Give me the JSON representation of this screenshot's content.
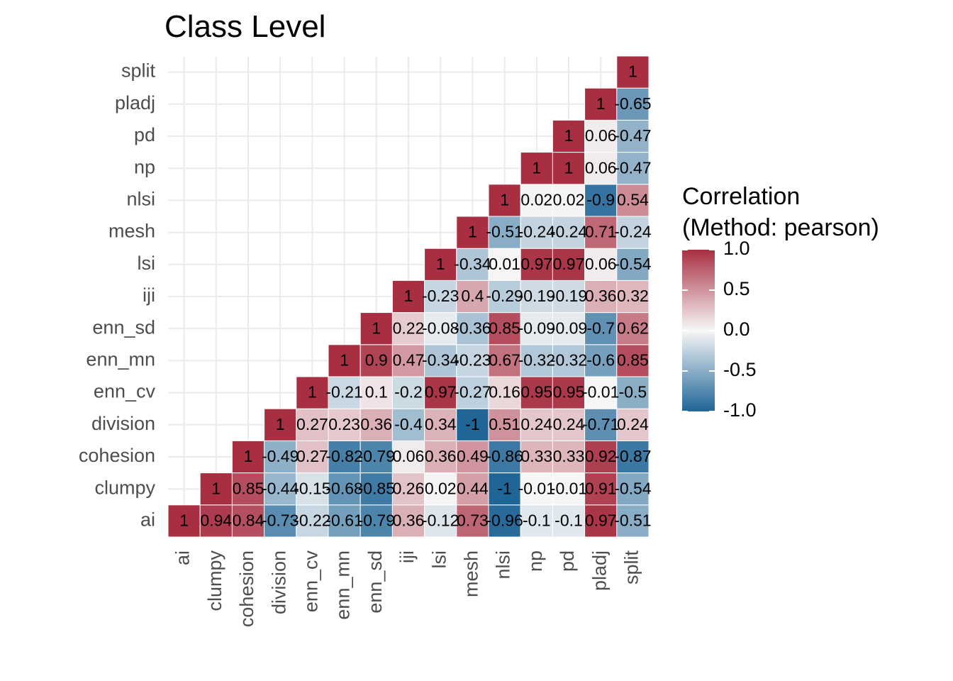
{
  "chart_data": {
    "type": "heatmap",
    "title": "Class Level",
    "variables": [
      "ai",
      "clumpy",
      "cohesion",
      "division",
      "enn_cv",
      "enn_mn",
      "enn_sd",
      "iji",
      "lsi",
      "mesh",
      "nlsi",
      "np",
      "pd",
      "pladj",
      "split"
    ],
    "cells": [
      {
        "x": "ai",
        "y": "ai",
        "value": 1,
        "label": "1"
      },
      {
        "x": "clumpy",
        "y": "ai",
        "value": 0.94,
        "label": "0.94"
      },
      {
        "x": "clumpy",
        "y": "clumpy",
        "value": 1,
        "label": "1"
      },
      {
        "x": "cohesion",
        "y": "ai",
        "value": 0.84,
        "label": "0.84"
      },
      {
        "x": "cohesion",
        "y": "clumpy",
        "value": 0.85,
        "label": "0.85"
      },
      {
        "x": "cohesion",
        "y": "cohesion",
        "value": 1,
        "label": "1"
      },
      {
        "x": "division",
        "y": "ai",
        "value": -0.73,
        "label": "-0.73"
      },
      {
        "x": "division",
        "y": "clumpy",
        "value": -0.44,
        "label": "-0.44"
      },
      {
        "x": "division",
        "y": "cohesion",
        "value": -0.49,
        "label": "-0.49"
      },
      {
        "x": "division",
        "y": "division",
        "value": 1,
        "label": "1"
      },
      {
        "x": "enn_cv",
        "y": "ai",
        "value": -0.22,
        "label": "-0.22"
      },
      {
        "x": "enn_cv",
        "y": "clumpy",
        "value": -0.15,
        "label": "-0.15"
      },
      {
        "x": "enn_cv",
        "y": "cohesion",
        "value": 0.27,
        "label": "0.27"
      },
      {
        "x": "enn_cv",
        "y": "division",
        "value": 0.27,
        "label": "0.27"
      },
      {
        "x": "enn_cv",
        "y": "enn_cv",
        "value": 1,
        "label": "1"
      },
      {
        "x": "enn_mn",
        "y": "ai",
        "value": -0.61,
        "label": "-0.61"
      },
      {
        "x": "enn_mn",
        "y": "clumpy",
        "value": -0.68,
        "label": "-0.68"
      },
      {
        "x": "enn_mn",
        "y": "cohesion",
        "value": -0.82,
        "label": "-0.82"
      },
      {
        "x": "enn_mn",
        "y": "division",
        "value": 0.23,
        "label": "0.23"
      },
      {
        "x": "enn_mn",
        "y": "enn_cv",
        "value": -0.21,
        "label": "-0.21"
      },
      {
        "x": "enn_mn",
        "y": "enn_mn",
        "value": 1,
        "label": "1"
      },
      {
        "x": "enn_sd",
        "y": "ai",
        "value": -0.79,
        "label": "-0.79"
      },
      {
        "x": "enn_sd",
        "y": "clumpy",
        "value": -0.85,
        "label": "-0.85"
      },
      {
        "x": "enn_sd",
        "y": "cohesion",
        "value": -0.79,
        "label": "-0.79"
      },
      {
        "x": "enn_sd",
        "y": "division",
        "value": 0.36,
        "label": "0.36"
      },
      {
        "x": "enn_sd",
        "y": "enn_cv",
        "value": 0.1,
        "label": "0.1"
      },
      {
        "x": "enn_sd",
        "y": "enn_mn",
        "value": 0.9,
        "label": "0.9"
      },
      {
        "x": "enn_sd",
        "y": "enn_sd",
        "value": 1,
        "label": "1"
      },
      {
        "x": "iji",
        "y": "ai",
        "value": 0.36,
        "label": "0.36"
      },
      {
        "x": "iji",
        "y": "clumpy",
        "value": 0.26,
        "label": "0.26"
      },
      {
        "x": "iji",
        "y": "cohesion",
        "value": 0.06,
        "label": "0.06"
      },
      {
        "x": "iji",
        "y": "division",
        "value": -0.4,
        "label": "-0.4"
      },
      {
        "x": "iji",
        "y": "enn_cv",
        "value": -0.2,
        "label": "-0.2"
      },
      {
        "x": "iji",
        "y": "enn_mn",
        "value": 0.47,
        "label": "0.47"
      },
      {
        "x": "iji",
        "y": "enn_sd",
        "value": 0.22,
        "label": "0.22"
      },
      {
        "x": "iji",
        "y": "iji",
        "value": 1,
        "label": "1"
      },
      {
        "x": "lsi",
        "y": "ai",
        "value": -0.12,
        "label": "-0.12"
      },
      {
        "x": "lsi",
        "y": "clumpy",
        "value": 0.02,
        "label": "0.02"
      },
      {
        "x": "lsi",
        "y": "cohesion",
        "value": 0.36,
        "label": "0.36"
      },
      {
        "x": "lsi",
        "y": "division",
        "value": 0.34,
        "label": "0.34"
      },
      {
        "x": "lsi",
        "y": "enn_cv",
        "value": 0.97,
        "label": "0.97"
      },
      {
        "x": "lsi",
        "y": "enn_mn",
        "value": -0.34,
        "label": "-0.34"
      },
      {
        "x": "lsi",
        "y": "enn_sd",
        "value": -0.08,
        "label": "-0.08"
      },
      {
        "x": "lsi",
        "y": "iji",
        "value": -0.23,
        "label": "-0.23"
      },
      {
        "x": "lsi",
        "y": "lsi",
        "value": 1,
        "label": "1"
      },
      {
        "x": "mesh",
        "y": "ai",
        "value": 0.73,
        "label": "0.73"
      },
      {
        "x": "mesh",
        "y": "clumpy",
        "value": 0.44,
        "label": "0.44"
      },
      {
        "x": "mesh",
        "y": "cohesion",
        "value": 0.49,
        "label": "0.49"
      },
      {
        "x": "mesh",
        "y": "division",
        "value": -1,
        "label": "-1"
      },
      {
        "x": "mesh",
        "y": "enn_cv",
        "value": -0.27,
        "label": "-0.27"
      },
      {
        "x": "mesh",
        "y": "enn_mn",
        "value": -0.23,
        "label": "-0.23"
      },
      {
        "x": "mesh",
        "y": "enn_sd",
        "value": -0.36,
        "label": "-0.36"
      },
      {
        "x": "mesh",
        "y": "iji",
        "value": 0.4,
        "label": "0.4"
      },
      {
        "x": "mesh",
        "y": "lsi",
        "value": -0.34,
        "label": "-0.34"
      },
      {
        "x": "mesh",
        "y": "mesh",
        "value": 1,
        "label": "1"
      },
      {
        "x": "nlsi",
        "y": "ai",
        "value": -0.96,
        "label": "-0.96"
      },
      {
        "x": "nlsi",
        "y": "clumpy",
        "value": -1,
        "label": "-1"
      },
      {
        "x": "nlsi",
        "y": "cohesion",
        "value": -0.86,
        "label": "-0.86"
      },
      {
        "x": "nlsi",
        "y": "division",
        "value": 0.51,
        "label": "0.51"
      },
      {
        "x": "nlsi",
        "y": "enn_cv",
        "value": 0.16,
        "label": "0.16"
      },
      {
        "x": "nlsi",
        "y": "enn_mn",
        "value": 0.67,
        "label": "0.67"
      },
      {
        "x": "nlsi",
        "y": "enn_sd",
        "value": 0.85,
        "label": "0.85"
      },
      {
        "x": "nlsi",
        "y": "iji",
        "value": -0.29,
        "label": "-0.29"
      },
      {
        "x": "nlsi",
        "y": "lsi",
        "value": 0.01,
        "label": "0.01"
      },
      {
        "x": "nlsi",
        "y": "mesh",
        "value": -0.51,
        "label": "-0.51"
      },
      {
        "x": "nlsi",
        "y": "nlsi",
        "value": 1,
        "label": "1"
      },
      {
        "x": "np",
        "y": "ai",
        "value": -0.1,
        "label": "-0.1"
      },
      {
        "x": "np",
        "y": "clumpy",
        "value": -0.01,
        "label": "-0.01"
      },
      {
        "x": "np",
        "y": "cohesion",
        "value": 0.33,
        "label": "0.33"
      },
      {
        "x": "np",
        "y": "division",
        "value": 0.24,
        "label": "0.24"
      },
      {
        "x": "np",
        "y": "enn_cv",
        "value": 0.95,
        "label": "0.95"
      },
      {
        "x": "np",
        "y": "enn_mn",
        "value": -0.32,
        "label": "-0.32"
      },
      {
        "x": "np",
        "y": "enn_sd",
        "value": -0.09,
        "label": "-0.09"
      },
      {
        "x": "np",
        "y": "iji",
        "value": -0.19,
        "label": "-0.19"
      },
      {
        "x": "np",
        "y": "lsi",
        "value": 0.97,
        "label": "0.97"
      },
      {
        "x": "np",
        "y": "mesh",
        "value": -0.24,
        "label": "-0.24"
      },
      {
        "x": "np",
        "y": "nlsi",
        "value": 0.02,
        "label": "0.02"
      },
      {
        "x": "np",
        "y": "np",
        "value": 1,
        "label": "1"
      },
      {
        "x": "pd",
        "y": "ai",
        "value": -0.1,
        "label": "-0.1"
      },
      {
        "x": "pd",
        "y": "clumpy",
        "value": -0.01,
        "label": "-0.01"
      },
      {
        "x": "pd",
        "y": "cohesion",
        "value": 0.33,
        "label": "0.33"
      },
      {
        "x": "pd",
        "y": "division",
        "value": 0.24,
        "label": "0.24"
      },
      {
        "x": "pd",
        "y": "enn_cv",
        "value": 0.95,
        "label": "0.95"
      },
      {
        "x": "pd",
        "y": "enn_mn",
        "value": -0.32,
        "label": "-0.32"
      },
      {
        "x": "pd",
        "y": "enn_sd",
        "value": -0.09,
        "label": "-0.09"
      },
      {
        "x": "pd",
        "y": "iji",
        "value": -0.19,
        "label": "-0.19"
      },
      {
        "x": "pd",
        "y": "lsi",
        "value": 0.97,
        "label": "0.97"
      },
      {
        "x": "pd",
        "y": "mesh",
        "value": -0.24,
        "label": "-0.24"
      },
      {
        "x": "pd",
        "y": "nlsi",
        "value": 0.02,
        "label": "0.02"
      },
      {
        "x": "pd",
        "y": "np",
        "value": 1,
        "label": "1"
      },
      {
        "x": "pd",
        "y": "pd",
        "value": 1,
        "label": "1"
      },
      {
        "x": "pladj",
        "y": "ai",
        "value": 0.97,
        "label": "0.97"
      },
      {
        "x": "pladj",
        "y": "clumpy",
        "value": 0.91,
        "label": "0.91"
      },
      {
        "x": "pladj",
        "y": "cohesion",
        "value": 0.92,
        "label": "0.92"
      },
      {
        "x": "pladj",
        "y": "division",
        "value": -0.71,
        "label": "-0.71"
      },
      {
        "x": "pladj",
        "y": "enn_cv",
        "value": -0.01,
        "label": "-0.01"
      },
      {
        "x": "pladj",
        "y": "enn_mn",
        "value": -0.6,
        "label": "-0.6"
      },
      {
        "x": "pladj",
        "y": "enn_sd",
        "value": -0.7,
        "label": "-0.7"
      },
      {
        "x": "pladj",
        "y": "iji",
        "value": 0.36,
        "label": "0.36"
      },
      {
        "x": "pladj",
        "y": "lsi",
        "value": 0.06,
        "label": "0.06"
      },
      {
        "x": "pladj",
        "y": "mesh",
        "value": 0.71,
        "label": "0.71"
      },
      {
        "x": "pladj",
        "y": "nlsi",
        "value": -0.9,
        "label": "-0.9"
      },
      {
        "x": "pladj",
        "y": "np",
        "value": 0.06,
        "label": "0.06"
      },
      {
        "x": "pladj",
        "y": "pd",
        "value": 0.06,
        "label": "0.06"
      },
      {
        "x": "pladj",
        "y": "pladj",
        "value": 1,
        "label": "1"
      },
      {
        "x": "split",
        "y": "ai",
        "value": -0.51,
        "label": "-0.51"
      },
      {
        "x": "split",
        "y": "clumpy",
        "value": -0.54,
        "label": "-0.54"
      },
      {
        "x": "split",
        "y": "cohesion",
        "value": -0.87,
        "label": "-0.87"
      },
      {
        "x": "split",
        "y": "division",
        "value": 0.24,
        "label": "0.24"
      },
      {
        "x": "split",
        "y": "enn_cv",
        "value": -0.5,
        "label": "-0.5"
      },
      {
        "x": "split",
        "y": "enn_mn",
        "value": 0.85,
        "label": "0.85"
      },
      {
        "x": "split",
        "y": "enn_sd",
        "value": 0.62,
        "label": "0.62"
      },
      {
        "x": "split",
        "y": "iji",
        "value": 0.32,
        "label": "0.32"
      },
      {
        "x": "split",
        "y": "lsi",
        "value": -0.54,
        "label": "-0.54"
      },
      {
        "x": "split",
        "y": "mesh",
        "value": -0.24,
        "label": "-0.24"
      },
      {
        "x": "split",
        "y": "nlsi",
        "value": 0.54,
        "label": "0.54"
      },
      {
        "x": "split",
        "y": "np",
        "value": -0.47,
        "label": "-0.47"
      },
      {
        "x": "split",
        "y": "pd",
        "value": -0.47,
        "label": "-0.47"
      },
      {
        "x": "split",
        "y": "pladj",
        "value": -0.65,
        "label": "-0.65"
      },
      {
        "x": "split",
        "y": "split",
        "value": 1,
        "label": "1"
      }
    ],
    "legend": {
      "title_line1": "Correlation",
      "title_line2": "(Method: pearson)",
      "ticks": [
        {
          "value": 1.0,
          "label": "1.0"
        },
        {
          "value": 0.5,
          "label": "0.5"
        },
        {
          "value": 0.0,
          "label": "0.0"
        },
        {
          "value": -0.5,
          "label": "-0.5"
        },
        {
          "value": -1.0,
          "label": "-1.0"
        }
      ],
      "range": [
        -1,
        1
      ],
      "placement": "right"
    },
    "colors": {
      "low": "#1f6596",
      "mid": "#f7f7f7",
      "high": "#a82f42"
    },
    "grid": true
  }
}
